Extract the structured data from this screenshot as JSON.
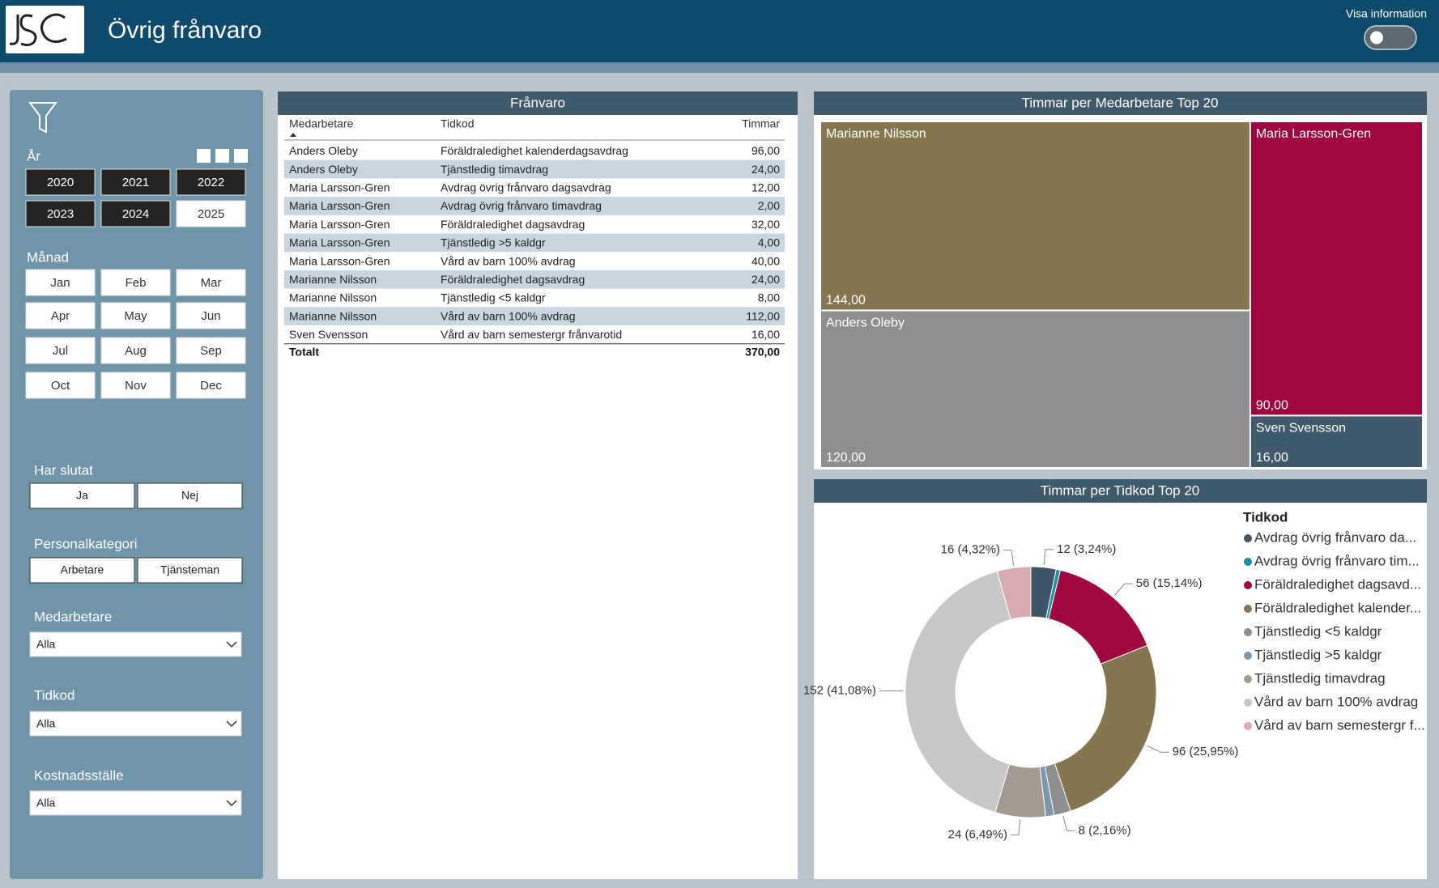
{
  "header": {
    "title": "Övrig frånvaro",
    "info_toggle": "Visa information"
  },
  "filters": {
    "year": {
      "label": "År",
      "options": [
        {
          "label": "2020",
          "selected": true
        },
        {
          "label": "2021",
          "selected": true
        },
        {
          "label": "2022",
          "selected": true
        },
        {
          "label": "2023",
          "selected": true
        },
        {
          "label": "2024",
          "selected": true
        },
        {
          "label": "2025",
          "selected": false
        }
      ]
    },
    "month": {
      "label": "Månad",
      "options": [
        "Jan",
        "Feb",
        "Mar",
        "Apr",
        "May",
        "Jun",
        "Jul",
        "Aug",
        "Sep",
        "Oct",
        "Nov",
        "Dec"
      ]
    },
    "har_slutat": {
      "label": "Har slutat",
      "options": [
        "Ja",
        "Nej"
      ]
    },
    "personalkategori": {
      "label": "Personalkategori",
      "options": [
        "Arbetare",
        "Tjänsteman"
      ]
    },
    "medarbetare": {
      "label": "Medarbetare",
      "value": "Alla"
    },
    "tidkod": {
      "label": "Tidkod",
      "value": "Alla"
    },
    "kostnadsstalle": {
      "label": "Kostnadsställe",
      "value": "Alla"
    }
  },
  "table": {
    "title": "Frånvaro",
    "columns": [
      "Medarbetare",
      "Tidkod",
      "Timmar"
    ],
    "rows": [
      [
        "Anders Oleby",
        "Föräldraledighet kalenderdagsavdrag",
        "96,00"
      ],
      [
        "Anders Oleby",
        "Tjänstledig timavdrag",
        "24,00"
      ],
      [
        "Maria Larsson-Gren",
        "Avdrag övrig frånvaro dagsavdrag",
        "12,00"
      ],
      [
        "Maria Larsson-Gren",
        "Avdrag övrig frånvaro timavdrag",
        "2,00"
      ],
      [
        "Maria Larsson-Gren",
        "Föräldraledighet dagsavdrag",
        "32,00"
      ],
      [
        "Maria Larsson-Gren",
        "Tjänstledig >5 kaldgr",
        "4,00"
      ],
      [
        "Maria Larsson-Gren",
        "Vård av barn 100% avdrag",
        "40,00"
      ],
      [
        "Marianne Nilsson",
        "Föräldraledighet dagsavdrag",
        "24,00"
      ],
      [
        "Marianne Nilsson",
        "Tjänstledig <5 kaldgr",
        "8,00"
      ],
      [
        "Marianne Nilsson",
        "Vård av barn 100% avdrag",
        "112,00"
      ],
      [
        "Sven Svensson",
        "Vård av barn semestergr frånvarotid",
        "16,00"
      ]
    ],
    "total": [
      "Totalt",
      "370,00"
    ]
  },
  "chart_data": [
    {
      "type": "treemap",
      "title": "Timmar per Medarbetare Top 20",
      "categories": [
        "Marianne Nilsson",
        "Maria Larsson-Gren",
        "Anders Oleby",
        "Sven Svensson"
      ],
      "values": [
        144,
        90,
        120,
        16
      ],
      "value_labels": [
        "144,00",
        "90,00",
        "120,00",
        "16,00"
      ],
      "colors": [
        "#85764d",
        "#a0063f",
        "#8e8e90",
        "#3f5a6b"
      ]
    },
    {
      "type": "donut",
      "title": "Timmar per Tidkod Top 20",
      "legend_title": "Tidkod",
      "categories": [
        "Avdrag övrig frånvaro da...",
        "Avdrag övrig frånvaro tim...",
        "Föräldraledighet dagsavd...",
        "Föräldraledighet kalender...",
        "Tjänstledig <5 kaldgr",
        "Tjänstledig >5 kaldgr",
        "Tjänstledig timavdrag",
        "Vård av barn 100% avdrag",
        "Vård av barn semestergr f..."
      ],
      "values": [
        12,
        2,
        56,
        96,
        8,
        4,
        24,
        152,
        16
      ],
      "value_labels": [
        "12 (3,24%)",
        null,
        "56 (15,14%)",
        "96 (25,95%)",
        "8 (2,16%)",
        null,
        "24 (6,49%)",
        "152 (41,08%)",
        "16 (4,32%)"
      ],
      "colors": [
        "#3d5566",
        "#1a8fa0",
        "#a0063f",
        "#85764d",
        "#8e8e8e",
        "#7b97aa",
        "#a39b92",
        "#c8c8ca",
        "#d9aab0"
      ]
    }
  ]
}
